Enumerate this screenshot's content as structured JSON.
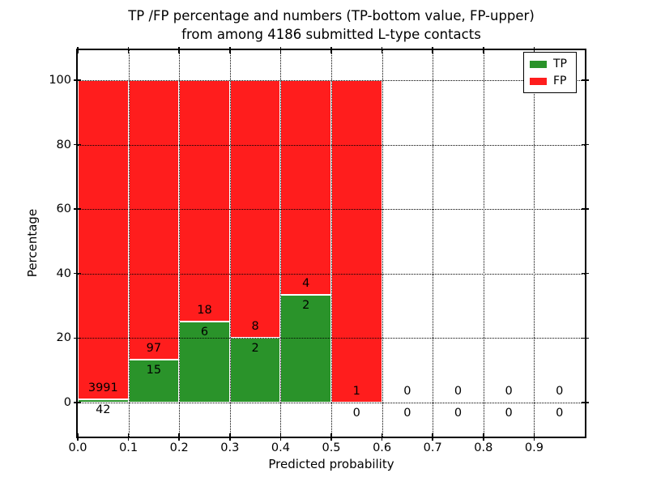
{
  "title": {
    "line1": "TP /FP percentage and numbers (TP-bottom value, FP-upper)",
    "line2": "from among 4186 submitted L-type contacts"
  },
  "axes": {
    "xlabel": "Predicted probability",
    "ylabel": "Percentage"
  },
  "legend": {
    "items": [
      {
        "label": "TP",
        "color": "#2a932a"
      },
      {
        "label": "FP",
        "color": "#ff1d1d"
      }
    ]
  },
  "chart_data": {
    "type": "bar",
    "stacked": true,
    "title": "TP /FP percentage and numbers (TP-bottom value, FP-upper) from among 4186 submitted L-type contacts",
    "xlabel": "Predicted probability",
    "ylabel": "Percentage",
    "xlim": [
      0.0,
      1.0
    ],
    "ylim": [
      -10.6,
      109.3
    ],
    "grid": "dotted-black-both-axes",
    "legend_position": "upper right",
    "bar_edge_color": "#ffffff",
    "bin_width": 0.1,
    "bin_edges": [
      0.0,
      0.1,
      0.2,
      0.3,
      0.4,
      0.5,
      0.6,
      0.7,
      0.8,
      0.9,
      1.0
    ],
    "x_tick_labels": [
      "0.0",
      "0.1",
      "0.2",
      "0.3",
      "0.4",
      "0.5",
      "0.6",
      "0.7",
      "0.8",
      "0.9"
    ],
    "y_ticks": [
      0,
      20,
      40,
      60,
      80,
      100
    ],
    "series": [
      {
        "name": "TP",
        "color": "#2a932a",
        "counts": [
          42,
          15,
          6,
          2,
          2,
          0,
          0,
          0,
          0,
          0
        ],
        "percent": [
          1.04,
          13.39,
          25.0,
          20.0,
          33.33,
          0,
          0,
          0,
          0,
          0
        ]
      },
      {
        "name": "FP",
        "color": "#ff1d1d",
        "counts": [
          3991,
          97,
          18,
          8,
          4,
          1,
          0,
          0,
          0,
          0
        ],
        "percent": [
          98.96,
          86.61,
          75.0,
          80.0,
          66.67,
          100.0,
          0,
          0,
          0,
          0
        ]
      }
    ],
    "label_convention": "TP count printed below segment boundary, FP count printed above it"
  }
}
